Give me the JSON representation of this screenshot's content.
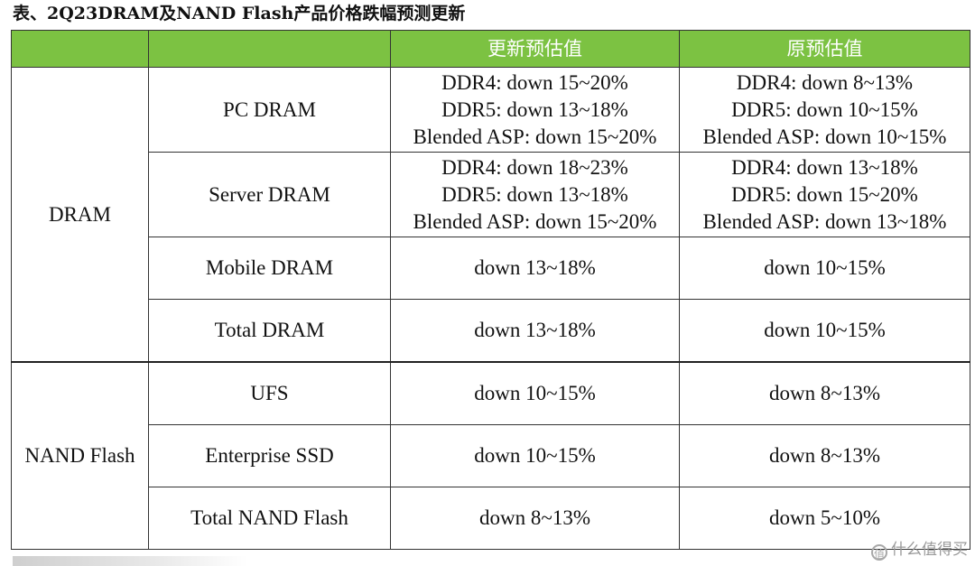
{
  "caption": "表、2Q23DRAM及NAND Flash产品价格跌幅预测更新",
  "header": {
    "col_updated": "更新预估值",
    "col_original": "原预估值"
  },
  "groups": {
    "dram": "DRAM",
    "nand": "NAND Flash"
  },
  "rows": [
    {
      "product": "PC DRAM",
      "updated": [
        "DDR4: down 15~20%",
        "DDR5: down 13~18%",
        "Blended ASP: down 15~20%"
      ],
      "original": [
        "DDR4: down 8~13%",
        "DDR5: down 10~15%",
        "Blended ASP: down 10~15%"
      ]
    },
    {
      "product": "Server DRAM",
      "updated": [
        "DDR4: down 18~23%",
        "DDR5: down 13~18%",
        "Blended ASP: down 15~20%"
      ],
      "original": [
        "DDR4: down 13~18%",
        "DDR5: down 15~20%",
        "Blended ASP: down 13~18%"
      ]
    },
    {
      "product": "Mobile DRAM",
      "updated": [
        "down 13~18%"
      ],
      "original": [
        "down 10~15%"
      ]
    },
    {
      "product": "Total DRAM",
      "updated": [
        "down 13~18%"
      ],
      "original": [
        "down 10~15%"
      ]
    },
    {
      "product": "UFS",
      "updated": [
        "down 10~15%"
      ],
      "original": [
        "down 8~13%"
      ]
    },
    {
      "product": "Enterprise SSD",
      "updated": [
        "down 10~15%"
      ],
      "original": [
        "down 8~13%"
      ]
    },
    {
      "product": "Total NAND Flash",
      "updated": [
        "down 8~13%"
      ],
      "original": [
        "down 5~10%"
      ]
    }
  ],
  "watermark": {
    "icon": "值",
    "text": "什么值得买"
  }
}
